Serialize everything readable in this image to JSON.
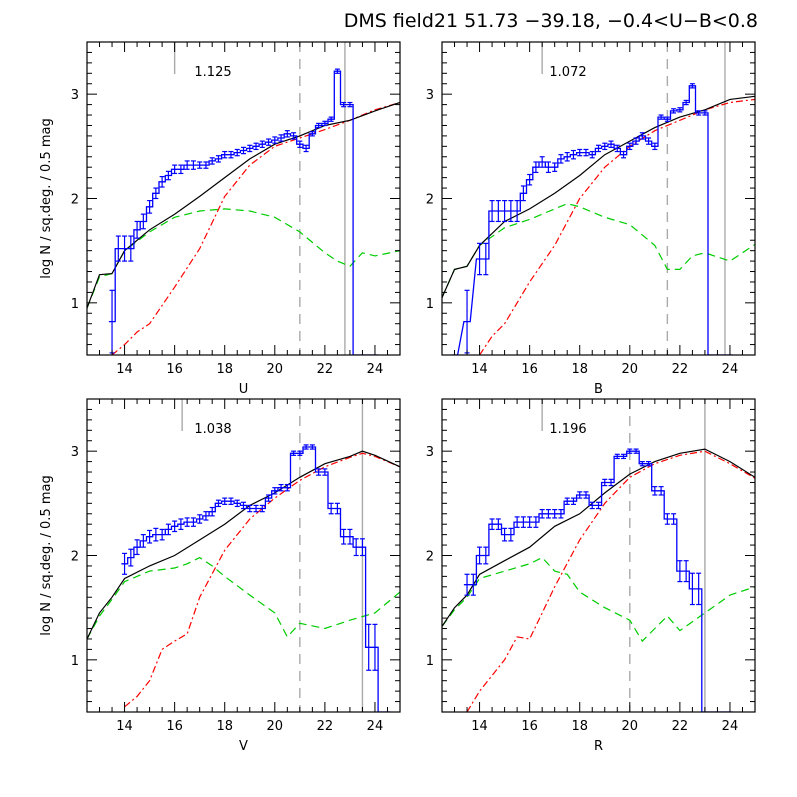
{
  "figure": {
    "title": "DMS field21 51.73 −39.18, −0.4<U−B<0.8"
  },
  "colors": {
    "observed": "#0000ff",
    "model_total": "#000000",
    "model_thin": "#ff0000",
    "model_thick": "#00cc00",
    "marker": "#aaaaaa"
  },
  "chart_data": [
    {
      "type": "line",
      "panel": "U",
      "xlabel": "U",
      "ylabel": "log N / sq.deg. / 0.5 mag",
      "xlim": [
        12.5,
        25
      ],
      "ylim": [
        0.5,
        3.5
      ],
      "xticks": [
        14,
        16,
        18,
        20,
        22,
        24
      ],
      "yticks": [
        1,
        2,
        3
      ],
      "annotation": "1.125",
      "markers": {
        "solid": [
          16,
          22.8
        ],
        "dashed": [
          21
        ]
      },
      "observed": {
        "x": [
          13.5,
          13.75,
          14.0,
          14.25,
          14.5,
          14.75,
          15.0,
          15.25,
          15.5,
          15.75,
          16.0,
          16.25,
          16.5,
          16.75,
          17.0,
          17.25,
          17.5,
          17.75,
          18.0,
          18.25,
          18.5,
          18.75,
          19.0,
          19.25,
          19.5,
          19.75,
          20.0,
          20.25,
          20.5,
          20.75,
          21.0,
          21.25,
          21.5,
          21.75,
          22.0,
          22.25,
          22.5,
          22.75,
          23.0,
          23.25,
          23.5,
          23.75,
          24.0
        ],
        "y": [
          0.82,
          1.52,
          1.52,
          1.52,
          1.7,
          1.78,
          1.92,
          2.05,
          2.16,
          2.22,
          2.28,
          2.28,
          2.32,
          2.32,
          2.32,
          2.32,
          2.36,
          2.38,
          2.42,
          2.42,
          2.44,
          2.46,
          2.48,
          2.5,
          2.52,
          2.54,
          2.56,
          2.58,
          2.62,
          2.6,
          2.52,
          2.48,
          2.62,
          2.7,
          2.72,
          2.76,
          3.22,
          2.9,
          2.9,
          0.5,
          0.5,
          0.5,
          0.5
        ],
        "err": [
          0.3,
          0.12,
          0.12,
          0.12,
          0.08,
          0.07,
          0.06,
          0.05,
          0.05,
          0.04,
          0.04,
          0.04,
          0.04,
          0.04,
          0.03,
          0.03,
          0.03,
          0.03,
          0.03,
          0.03,
          0.03,
          0.03,
          0.03,
          0.03,
          0.03,
          0.03,
          0.03,
          0.03,
          0.03,
          0.03,
          0.03,
          0.03,
          0.02,
          0.02,
          0.02,
          0.02,
          0.02,
          0.02,
          0.02,
          0,
          0,
          0,
          0
        ]
      },
      "model_total": {
        "x": [
          12.5,
          13,
          13.5,
          14,
          15,
          16,
          17,
          18,
          19,
          20,
          21,
          22,
          23,
          24,
          25
        ],
        "y": [
          0.95,
          1.27,
          1.28,
          1.5,
          1.7,
          1.85,
          2.02,
          2.2,
          2.38,
          2.52,
          2.6,
          2.7,
          2.75,
          2.84,
          2.92
        ]
      },
      "model_thin": {
        "x": [
          13.5,
          14,
          14.5,
          15,
          16,
          17,
          18,
          19,
          20,
          21,
          22,
          23,
          24,
          25
        ],
        "y": [
          0.5,
          0.6,
          0.72,
          0.8,
          1.15,
          1.52,
          2.02,
          2.32,
          2.5,
          2.58,
          2.66,
          2.75,
          2.85,
          2.92
        ]
      },
      "model_thick": {
        "x": [
          12.5,
          13,
          13.5,
          14,
          15,
          16,
          17,
          18,
          19,
          20,
          21,
          22,
          22.5,
          23,
          23.5,
          24,
          25
        ],
        "y": [
          0.95,
          1.25,
          1.28,
          1.5,
          1.68,
          1.82,
          1.88,
          1.9,
          1.88,
          1.82,
          1.68,
          1.48,
          1.4,
          1.35,
          1.48,
          1.45,
          1.5
        ]
      }
    },
    {
      "type": "line",
      "panel": "B",
      "xlabel": "B",
      "ylabel": "",
      "xlim": [
        12.5,
        25
      ],
      "ylim": [
        0.5,
        3.5
      ],
      "xticks": [
        14,
        16,
        18,
        20,
        22,
        24
      ],
      "yticks": [
        1,
        2,
        3
      ],
      "annotation": "1.072",
      "markers": {
        "solid": [
          16.5,
          23.8
        ],
        "dashed": [
          21.5
        ]
      },
      "observed": {
        "x": [
          13.0,
          13.5,
          14.0,
          14.25,
          14.5,
          14.75,
          15.0,
          15.25,
          15.5,
          15.75,
          16.0,
          16.25,
          16.5,
          16.75,
          17.0,
          17.25,
          17.5,
          17.75,
          18.0,
          18.25,
          18.5,
          18.75,
          19.0,
          19.25,
          19.5,
          19.75,
          20.0,
          20.25,
          20.5,
          20.75,
          21.0,
          21.25,
          21.5,
          21.75,
          22.0,
          22.25,
          22.5,
          22.75,
          23.0,
          23.25,
          23.5,
          23.75,
          24.0
        ],
        "y": [
          0.5,
          0.82,
          1.42,
          1.42,
          1.88,
          1.88,
          1.88,
          1.88,
          1.88,
          2.05,
          2.18,
          2.3,
          2.35,
          2.3,
          2.3,
          2.38,
          2.4,
          2.42,
          2.44,
          2.44,
          2.42,
          2.48,
          2.5,
          2.52,
          2.48,
          2.42,
          2.5,
          2.55,
          2.6,
          2.55,
          2.5,
          2.78,
          2.76,
          2.84,
          2.85,
          2.92,
          3.08,
          2.82,
          2.82,
          0.5,
          0.5,
          0.5,
          0.5
        ],
        "err": [
          0,
          0.3,
          0.15,
          0.15,
          0.1,
          0.1,
          0.1,
          0.1,
          0.1,
          0.07,
          0.05,
          0.05,
          0.05,
          0.05,
          0.04,
          0.04,
          0.04,
          0.04,
          0.03,
          0.03,
          0.03,
          0.03,
          0.03,
          0.03,
          0.03,
          0.03,
          0.03,
          0.03,
          0.03,
          0.03,
          0.03,
          0.02,
          0.02,
          0.02,
          0.02,
          0.02,
          0.02,
          0.02,
          0.02,
          0,
          0,
          0,
          0
        ]
      },
      "model_total": {
        "x": [
          12.5,
          13,
          13.5,
          14,
          15,
          16,
          17,
          18,
          19,
          20,
          21,
          22,
          23,
          24,
          25
        ],
        "y": [
          1.05,
          1.32,
          1.35,
          1.55,
          1.78,
          1.9,
          2.05,
          2.22,
          2.42,
          2.55,
          2.68,
          2.78,
          2.85,
          2.95,
          2.98
        ]
      },
      "model_thin": {
        "x": [
          14,
          14.5,
          15,
          16,
          17,
          18,
          19,
          20,
          21,
          22,
          23,
          24,
          25
        ],
        "y": [
          0.5,
          0.68,
          0.8,
          1.2,
          1.55,
          2.0,
          2.3,
          2.5,
          2.65,
          2.75,
          2.85,
          2.92,
          2.95
        ]
      },
      "model_thick": {
        "x": [
          12.5,
          13,
          13.5,
          14,
          15,
          16,
          17,
          17.5,
          18,
          19,
          20,
          21,
          21.5,
          22,
          22.5,
          23,
          24,
          25
        ],
        "y": [
          1.05,
          1.32,
          1.35,
          1.55,
          1.72,
          1.8,
          1.9,
          1.95,
          1.92,
          1.82,
          1.75,
          1.55,
          1.32,
          1.32,
          1.45,
          1.48,
          1.4,
          1.56
        ]
      }
    },
    {
      "type": "line",
      "panel": "V",
      "xlabel": "V",
      "ylabel": "log N / sq.deg. / 0.5 mag",
      "xlim": [
        12.5,
        25
      ],
      "ylim": [
        0.5,
        3.5
      ],
      "xticks": [
        14,
        16,
        18,
        20,
        22,
        24
      ],
      "yticks": [
        1,
        2,
        3
      ],
      "annotation": "1.038",
      "markers": {
        "solid": [
          16.3,
          23.5
        ],
        "dashed": [
          21
        ]
      },
      "observed": {
        "x": [
          14.0,
          14.25,
          14.5,
          14.75,
          15.0,
          15.25,
          15.5,
          15.75,
          16.0,
          16.25,
          16.5,
          16.75,
          17.0,
          17.25,
          17.5,
          17.75,
          18.0,
          18.25,
          18.5,
          18.75,
          19.0,
          19.25,
          19.5,
          19.75,
          20.0,
          20.25,
          20.5,
          20.75,
          21.0,
          21.25,
          21.5,
          21.75,
          22.0,
          22.25,
          22.5,
          22.75,
          23.0,
          23.25,
          23.5,
          23.75,
          24.0,
          24.25,
          24.5
        ],
        "y": [
          1.92,
          1.98,
          2.08,
          2.14,
          2.18,
          2.2,
          2.2,
          2.25,
          2.28,
          2.3,
          2.32,
          2.32,
          2.35,
          2.38,
          2.42,
          2.5,
          2.52,
          2.52,
          2.5,
          2.48,
          2.45,
          2.45,
          2.45,
          2.55,
          2.62,
          2.65,
          2.65,
          2.98,
          2.98,
          3.04,
          3.04,
          2.8,
          2.8,
          2.45,
          2.45,
          2.18,
          2.18,
          2.08,
          2.08,
          1.12,
          1.12,
          0.5,
          0.5
        ],
        "err": [
          0.1,
          0.08,
          0.07,
          0.06,
          0.06,
          0.06,
          0.05,
          0.05,
          0.05,
          0.05,
          0.04,
          0.04,
          0.04,
          0.04,
          0.04,
          0.03,
          0.03,
          0.03,
          0.03,
          0.03,
          0.03,
          0.03,
          0.03,
          0.03,
          0.03,
          0.03,
          0.03,
          0.02,
          0.02,
          0.02,
          0.02,
          0.03,
          0.03,
          0.05,
          0.05,
          0.07,
          0.07,
          0.08,
          0.08,
          0.22,
          0.22,
          0,
          0
        ]
      },
      "model_total": {
        "x": [
          12.5,
          13,
          13.5,
          14,
          15,
          16,
          17,
          18,
          19,
          20,
          21,
          22,
          23,
          23.5,
          24,
          25
        ],
        "y": [
          1.2,
          1.45,
          1.6,
          1.78,
          1.9,
          2.0,
          2.15,
          2.3,
          2.48,
          2.6,
          2.75,
          2.88,
          2.95,
          3.0,
          2.96,
          2.85
        ]
      },
      "model_thin": {
        "x": [
          14,
          14.5,
          15,
          15.5,
          16,
          16.5,
          17,
          18,
          19,
          20,
          21,
          22,
          23,
          23.5,
          24,
          25
        ],
        "y": [
          0.55,
          0.65,
          0.8,
          1.1,
          1.18,
          1.25,
          1.6,
          2.05,
          2.35,
          2.55,
          2.72,
          2.85,
          2.94,
          2.98,
          2.95,
          2.85
        ]
      },
      "model_thick": {
        "x": [
          12.5,
          13,
          13.5,
          14,
          15,
          16,
          16.5,
          17,
          17.5,
          18,
          19,
          20,
          20.5,
          21,
          22,
          23,
          24,
          25
        ],
        "y": [
          1.2,
          1.42,
          1.58,
          1.75,
          1.85,
          1.88,
          1.92,
          1.98,
          1.9,
          1.8,
          1.62,
          1.45,
          1.22,
          1.35,
          1.3,
          1.38,
          1.45,
          1.65
        ]
      }
    },
    {
      "type": "line",
      "panel": "R",
      "xlabel": "R",
      "ylabel": "",
      "xlim": [
        12.5,
        25
      ],
      "ylim": [
        0.5,
        3.5
      ],
      "xticks": [
        14,
        16,
        18,
        20,
        22,
        24
      ],
      "yticks": [
        1,
        2,
        3
      ],
      "annotation": "1.196",
      "markers": {
        "solid": [
          16.5,
          23
        ],
        "dashed": [
          20
        ]
      },
      "observed": {
        "x": [
          13.5,
          13.75,
          14.0,
          14.25,
          14.5,
          14.75,
          15.0,
          15.25,
          15.5,
          15.75,
          16.0,
          16.25,
          16.5,
          16.75,
          17.0,
          17.25,
          17.5,
          17.75,
          18.0,
          18.25,
          18.5,
          18.75,
          19.0,
          19.25,
          19.5,
          19.75,
          20.0,
          20.25,
          20.5,
          20.75,
          21.0,
          21.25,
          21.5,
          21.75,
          22.0,
          22.25,
          22.5,
          22.75,
          23.0,
          23.25,
          23.5,
          23.75,
          24.0
        ],
        "y": [
          1.72,
          1.72,
          2.0,
          2.0,
          2.3,
          2.3,
          2.2,
          2.2,
          2.32,
          2.32,
          2.32,
          2.32,
          2.4,
          2.4,
          2.4,
          2.4,
          2.52,
          2.52,
          2.58,
          2.58,
          2.48,
          2.48,
          2.7,
          2.7,
          2.95,
          2.95,
          3.0,
          3.0,
          2.88,
          2.88,
          2.62,
          2.62,
          2.35,
          2.35,
          1.85,
          1.85,
          1.68,
          1.68,
          0.5,
          0.5,
          0.5,
          0.5,
          0.5
        ],
        "err": [
          0.1,
          0.1,
          0.08,
          0.08,
          0.05,
          0.05,
          0.06,
          0.06,
          0.05,
          0.05,
          0.05,
          0.05,
          0.04,
          0.04,
          0.04,
          0.04,
          0.03,
          0.03,
          0.03,
          0.03,
          0.03,
          0.03,
          0.03,
          0.03,
          0.02,
          0.02,
          0.02,
          0.02,
          0.02,
          0.02,
          0.04,
          0.04,
          0.05,
          0.05,
          0.1,
          0.1,
          0.15,
          0.15,
          0,
          0,
          0,
          0,
          0
        ]
      },
      "model_total": {
        "x": [
          12.5,
          13,
          13.5,
          14,
          15,
          16,
          17,
          18,
          19,
          20,
          21,
          22,
          23,
          24,
          25
        ],
        "y": [
          1.32,
          1.5,
          1.62,
          1.82,
          1.95,
          2.08,
          2.28,
          2.4,
          2.6,
          2.78,
          2.9,
          2.98,
          3.02,
          2.9,
          2.75
        ]
      },
      "model_thin": {
        "x": [
          13.5,
          14,
          14.5,
          15,
          15.5,
          16,
          16.5,
          17,
          18,
          19,
          20,
          21,
          22,
          23,
          24,
          25
        ],
        "y": [
          0.5,
          0.7,
          0.85,
          1.0,
          1.22,
          1.2,
          1.45,
          1.7,
          2.15,
          2.5,
          2.75,
          2.88,
          2.96,
          3.0,
          2.88,
          2.74
        ]
      },
      "model_thick": {
        "x": [
          12.5,
          13,
          13.5,
          14,
          15,
          16,
          16.5,
          17,
          17.5,
          18,
          19,
          20,
          20.5,
          21,
          21.5,
          22,
          23,
          24,
          25
        ],
        "y": [
          1.32,
          1.48,
          1.6,
          1.78,
          1.85,
          1.92,
          1.98,
          1.85,
          1.82,
          1.65,
          1.5,
          1.38,
          1.18,
          1.3,
          1.42,
          1.28,
          1.45,
          1.62,
          1.7
        ]
      }
    }
  ]
}
